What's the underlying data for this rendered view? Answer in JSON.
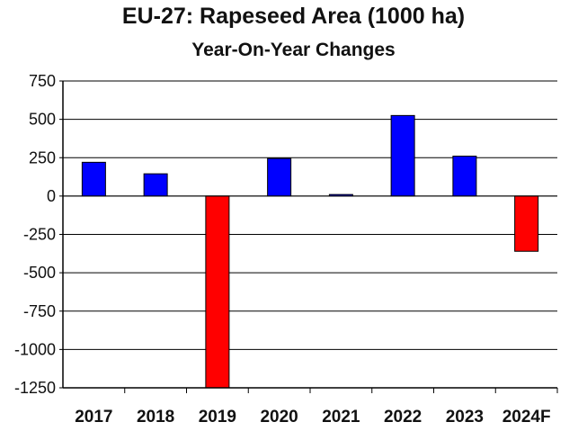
{
  "chart_data": {
    "type": "bar",
    "title": "EU-27: Rapeseed Area (1000 ha)",
    "subtitle": "Year-On-Year Changes",
    "categories": [
      "2017",
      "2018",
      "2019",
      "2020",
      "2021",
      "2022",
      "2023",
      "2024F"
    ],
    "values": [
      220,
      145,
      -1250,
      245,
      10,
      525,
      260,
      -360
    ],
    "forecast": [
      false,
      false,
      false,
      false,
      false,
      false,
      false,
      true
    ],
    "ylim": [
      -1250,
      750
    ],
    "yticks": [
      750,
      500,
      250,
      0,
      -250,
      -500,
      -750,
      -1000,
      -1250
    ],
    "ytick_labels": [
      "750",
      "500",
      "250",
      "0",
      "-250",
      "-500",
      "-750",
      "-1000",
      "-1250"
    ],
    "grid": true,
    "xlabel": "",
    "ylabel": "",
    "colors": {
      "positive": "#0000ff",
      "negative": "#ff0000",
      "grid": "#000000"
    }
  }
}
